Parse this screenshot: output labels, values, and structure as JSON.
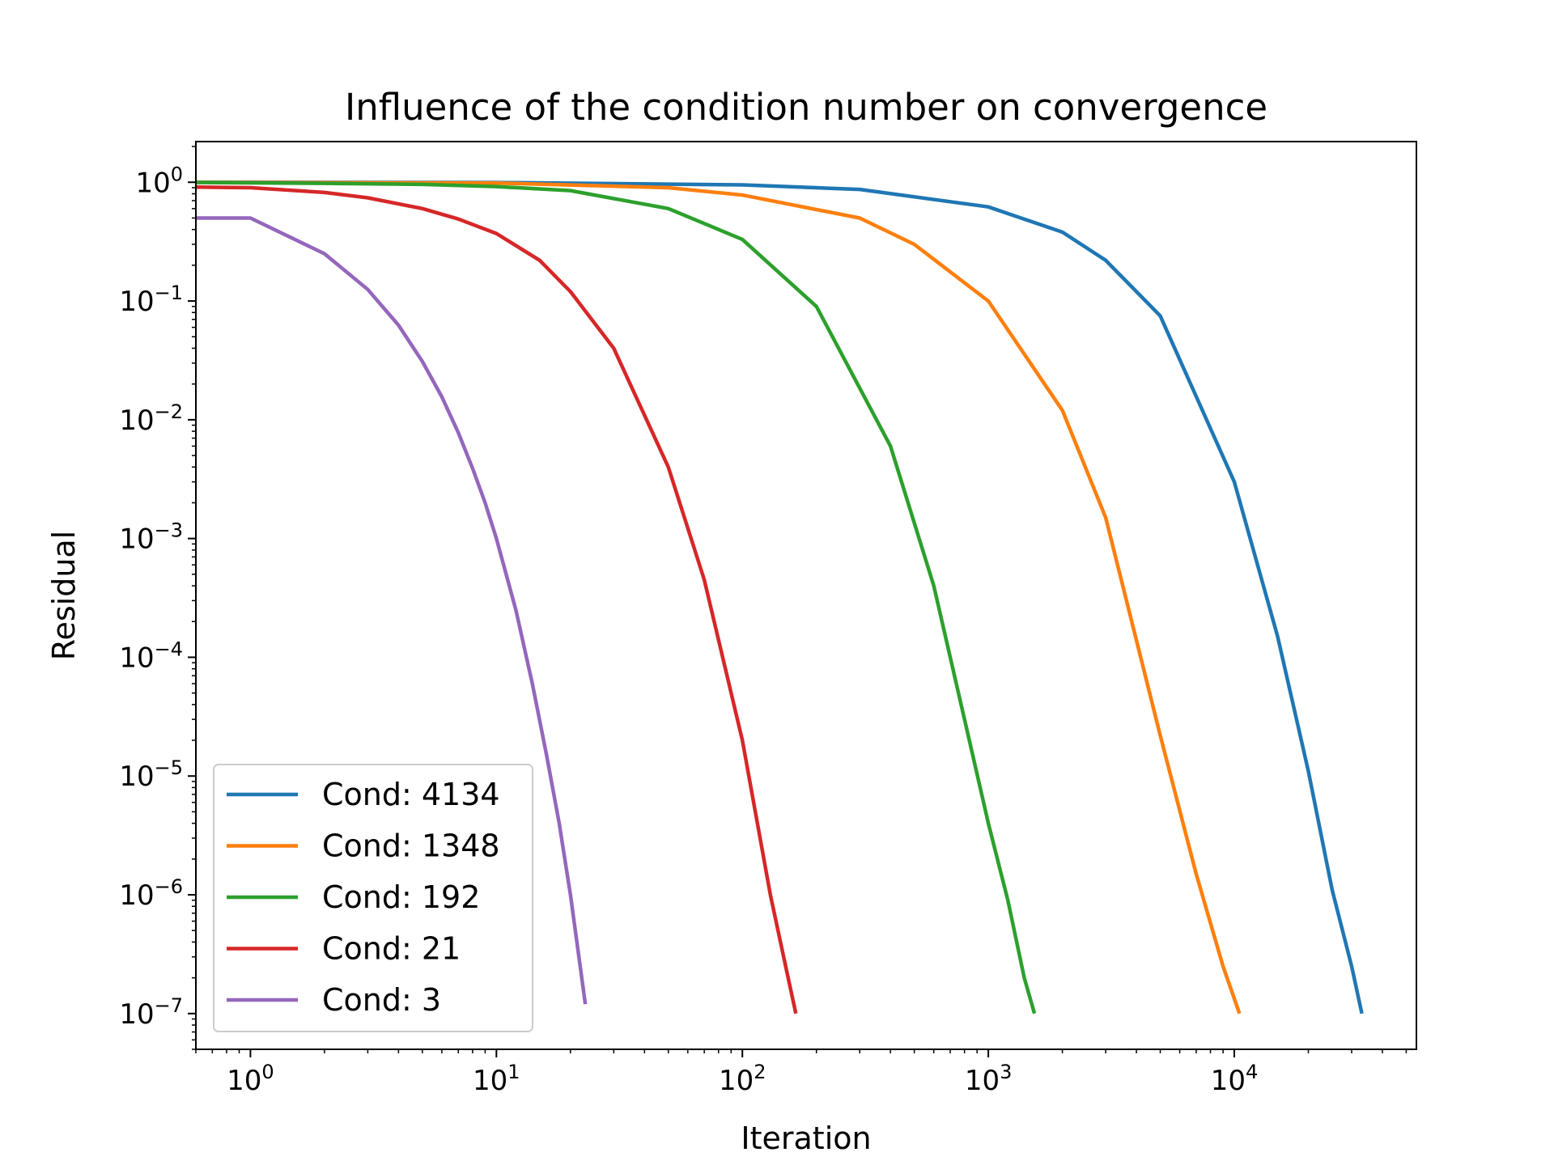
{
  "chart_data": {
    "type": "line",
    "title": "Influence of the condition number on convergence",
    "xlabel": "Iteration",
    "ylabel": "Residual",
    "xscale": "log",
    "yscale": "log",
    "xlim": [
      0.6,
      55000
    ],
    "ylim": [
      5e-08,
      2.2
    ],
    "grid": false,
    "legend_position": "lower-left",
    "x_ticks": [
      {
        "value": 1,
        "base": "10",
        "exp": "0"
      },
      {
        "value": 10,
        "base": "10",
        "exp": "1"
      },
      {
        "value": 100,
        "base": "10",
        "exp": "2"
      },
      {
        "value": 1000,
        "base": "10",
        "exp": "3"
      },
      {
        "value": 10000,
        "base": "10",
        "exp": "4"
      }
    ],
    "y_ticks": [
      {
        "value": 1,
        "base": "10",
        "exp": "0"
      },
      {
        "value": 0.1,
        "base": "10",
        "exp": "−1"
      },
      {
        "value": 0.01,
        "base": "10",
        "exp": "−2"
      },
      {
        "value": 0.001,
        "base": "10",
        "exp": "−3"
      },
      {
        "value": 0.0001,
        "base": "10",
        "exp": "−4"
      },
      {
        "value": 1e-05,
        "base": "10",
        "exp": "−5"
      },
      {
        "value": 1e-06,
        "base": "10",
        "exp": "−6"
      },
      {
        "value": 1e-07,
        "base": "10",
        "exp": "−7"
      }
    ],
    "series": [
      {
        "name": "Cond: 4134",
        "color": "#1f77b4",
        "x": [
          0.6,
          10,
          100,
          300,
          1000,
          2000,
          3000,
          5000,
          10000,
          15000,
          20000,
          25000,
          30000,
          33000
        ],
        "y": [
          0.999,
          0.995,
          0.95,
          0.87,
          0.62,
          0.38,
          0.22,
          0.075,
          0.003,
          0.00015,
          1.1e-05,
          1.1e-06,
          2.5e-07,
          1e-07
        ]
      },
      {
        "name": "Cond: 1348",
        "color": "#ff7f0e",
        "x": [
          0.6,
          10,
          50,
          100,
          300,
          500,
          1000,
          2000,
          3000,
          5000,
          7000,
          9000,
          10500
        ],
        "y": [
          0.998,
          0.985,
          0.9,
          0.78,
          0.5,
          0.3,
          0.1,
          0.012,
          0.0015,
          2.2e-05,
          1.5e-06,
          2.5e-07,
          1e-07
        ]
      },
      {
        "name": "Cond: 192",
        "color": "#2ca02c",
        "x": [
          0.6,
          2,
          5,
          10,
          20,
          50,
          100,
          200,
          400,
          600,
          800,
          1000,
          1200,
          1400,
          1540
        ],
        "y": [
          0.995,
          0.98,
          0.96,
          0.92,
          0.85,
          0.6,
          0.33,
          0.09,
          0.006,
          0.0004,
          3e-05,
          4e-06,
          9e-07,
          2e-07,
          1e-07
        ]
      },
      {
        "name": "Cond: 21",
        "color": "#d62728",
        "x": [
          0.6,
          1,
          2,
          3,
          5,
          7,
          10,
          15,
          20,
          30,
          50,
          70,
          100,
          130,
          150,
          165
        ],
        "y": [
          0.91,
          0.9,
          0.82,
          0.74,
          0.6,
          0.49,
          0.37,
          0.22,
          0.12,
          0.04,
          0.004,
          0.00045,
          2e-05,
          1e-06,
          2.5e-07,
          1e-07
        ]
      },
      {
        "name": "Cond: 3",
        "color": "#9467bd",
        "x": [
          0.6,
          1,
          2,
          3,
          4,
          5,
          6,
          7,
          8,
          9,
          10,
          12,
          14,
          16,
          18,
          20,
          23
        ],
        "y": [
          0.5,
          0.5,
          0.25,
          0.125,
          0.0625,
          0.031,
          0.0156,
          0.0078,
          0.0039,
          0.002,
          0.001,
          0.00025,
          6e-05,
          1.5e-05,
          4e-06,
          1e-06,
          1.2e-07
        ]
      }
    ]
  }
}
